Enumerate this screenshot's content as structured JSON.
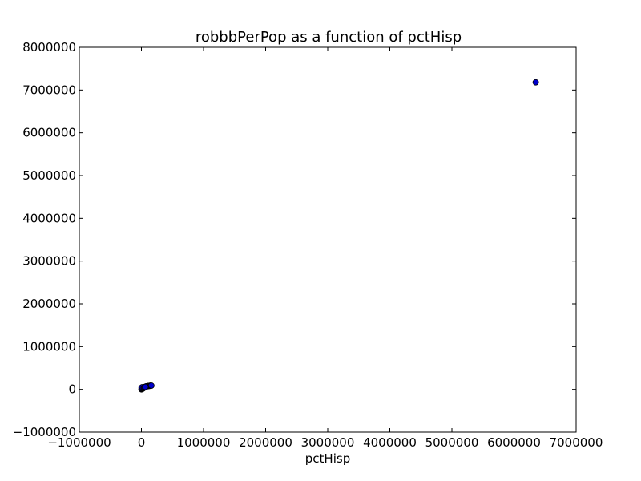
{
  "chart_data": {
    "type": "scatter",
    "title": "robbbPerPop as a function of pctHisp",
    "xlabel": "pctHisp",
    "ylabel": "",
    "xlim": [
      -1000000,
      7000000
    ],
    "ylim": [
      -1000000,
      8000000
    ],
    "xticks": [
      -1000000,
      0,
      1000000,
      2000000,
      3000000,
      4000000,
      5000000,
      6000000,
      7000000
    ],
    "yticks": [
      -1000000,
      0,
      1000000,
      2000000,
      3000000,
      4000000,
      5000000,
      6000000,
      7000000,
      8000000
    ],
    "grid": false,
    "marker_color": "#0000cc",
    "marker_edge": "#000000",
    "series": [
      {
        "x": [
          0,
          5000,
          10000,
          15000,
          20000,
          25000,
          30000,
          8000,
          40000,
          50000,
          60000,
          70000,
          80000,
          90000,
          100000,
          110000,
          120000,
          130000,
          140000,
          150000,
          160000,
          2000,
          12000,
          35000,
          45000,
          55000,
          65000,
          6350000
        ],
        "y": [
          0,
          10000,
          5000,
          20000,
          15000,
          30000,
          25000,
          40000,
          45000,
          55000,
          60000,
          65000,
          70000,
          72000,
          75000,
          78000,
          80000,
          82000,
          84000,
          86000,
          88000,
          35000,
          50000,
          38000,
          42000,
          48000,
          58000,
          7180000
        ]
      }
    ]
  }
}
